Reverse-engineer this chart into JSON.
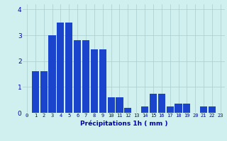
{
  "categories": [
    0,
    1,
    2,
    3,
    4,
    5,
    6,
    7,
    8,
    9,
    10,
    11,
    12,
    13,
    14,
    15,
    16,
    17,
    18,
    19,
    20,
    21,
    22,
    23
  ],
  "values": [
    0,
    1.6,
    1.6,
    3.0,
    3.5,
    3.5,
    2.8,
    2.8,
    2.45,
    2.45,
    0.6,
    0.6,
    0.2,
    0.0,
    0.25,
    0.75,
    0.75,
    0.25,
    0.35,
    0.35,
    0.0,
    0.25,
    0.25,
    0.0
  ],
  "bar_color": "#1a44cc",
  "bg_color": "#d0f0f0",
  "grid_color": "#aacccc",
  "xlabel": "Précipitations 1h ( mm )",
  "xlabel_color": "#0000aa",
  "tick_color": "#0000aa",
  "ylim": [
    0,
    4.2
  ],
  "yticks": [
    0,
    1,
    2,
    3,
    4
  ],
  "bar_width": 0.85
}
